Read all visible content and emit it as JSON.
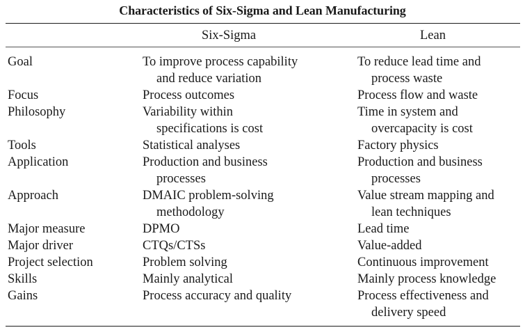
{
  "title": "Characteristics of Six-Sigma and Lean Manufacturing",
  "columns": [
    "Six-Sigma",
    "Lean"
  ],
  "rows": [
    {
      "label": "Goal",
      "six_sigma": [
        "To improve process capability",
        "and reduce variation"
      ],
      "lean": [
        "To reduce lead time and",
        "process waste"
      ]
    },
    {
      "label": "Focus",
      "six_sigma": [
        "Process outcomes"
      ],
      "lean": [
        "Process flow and waste"
      ]
    },
    {
      "label": "Philosophy",
      "six_sigma": [
        "Variability within",
        "specifications is cost"
      ],
      "lean": [
        "Time in system and",
        "overcapacity is cost"
      ]
    },
    {
      "label": "Tools",
      "six_sigma": [
        "Statistical analyses"
      ],
      "lean": [
        "Factory physics"
      ]
    },
    {
      "label": "Application",
      "six_sigma": [
        "Production and business",
        "processes"
      ],
      "lean": [
        "Production and business",
        "processes"
      ]
    },
    {
      "label": "Approach",
      "six_sigma": [
        "DMAIC problem-solving",
        "methodology"
      ],
      "lean": [
        "Value stream mapping and",
        "lean techniques"
      ]
    },
    {
      "label": "Major measure",
      "six_sigma": [
        "DPMO"
      ],
      "lean": [
        "Lead time"
      ]
    },
    {
      "label": "Major driver",
      "six_sigma": [
        "CTQs/CTSs"
      ],
      "lean": [
        "Value-added"
      ]
    },
    {
      "label": "Project selection",
      "six_sigma": [
        "Problem solving"
      ],
      "lean": [
        "Continuous improvement"
      ]
    },
    {
      "label": "Skills",
      "six_sigma": [
        "Mainly analytical"
      ],
      "lean": [
        "Mainly process knowledge"
      ]
    },
    {
      "label": "Gains",
      "six_sigma": [
        "Process accuracy and quality"
      ],
      "lean": [
        "Process effectiveness and",
        "delivery speed"
      ]
    }
  ]
}
